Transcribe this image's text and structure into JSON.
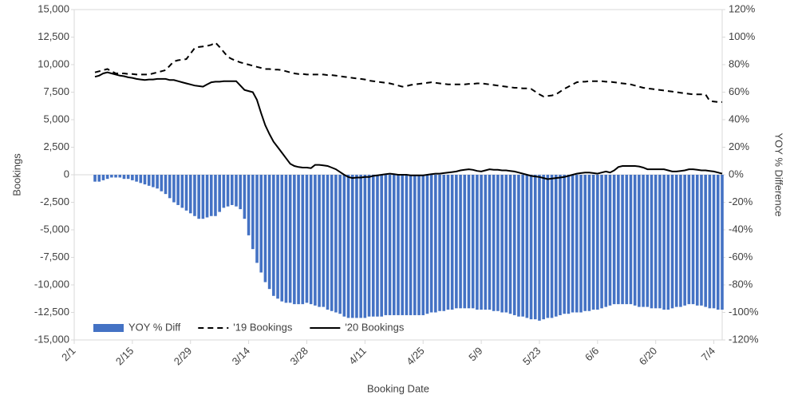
{
  "chart_data": {
    "type": "combo",
    "x_label": "Booking Date",
    "y_label": "Bookings",
    "y2_label": "YOY % Difference",
    "categories": [
      "2/1",
      null,
      null,
      null,
      null,
      null,
      null,
      null,
      null,
      null,
      null,
      null,
      null,
      null,
      "2/15",
      null,
      null,
      null,
      null,
      null,
      null,
      null,
      null,
      null,
      null,
      null,
      null,
      null,
      "2/29",
      null,
      null,
      null,
      null,
      null,
      null,
      null,
      null,
      null,
      null,
      null,
      null,
      null,
      "3/14",
      null,
      null,
      null,
      null,
      null,
      null,
      null,
      null,
      null,
      null,
      null,
      null,
      null,
      "3/28",
      null,
      null,
      null,
      null,
      null,
      null,
      null,
      null,
      null,
      null,
      null,
      null,
      null,
      "4/11",
      null,
      null,
      null,
      null,
      null,
      null,
      null,
      null,
      null,
      null,
      null,
      null,
      null,
      "4/25",
      null,
      null,
      null,
      null,
      null,
      null,
      null,
      null,
      null,
      null,
      null,
      null,
      null,
      "5/9",
      null,
      null,
      null,
      null,
      null,
      null,
      null,
      null,
      null,
      null,
      null,
      null,
      null,
      "5/23",
      null,
      null,
      null,
      null,
      null,
      null,
      null,
      null,
      null,
      null,
      null,
      null,
      null,
      "6/6",
      null,
      null,
      null,
      null,
      null,
      null,
      null,
      null,
      null,
      null,
      null,
      null,
      null,
      "6/20",
      null,
      null,
      null,
      null,
      null,
      null,
      null,
      null,
      null,
      null,
      null,
      null,
      null,
      "7/4",
      null,
      null
    ],
    "series": [
      {
        "name": "YOY % Diff",
        "type": "bar",
        "axis": "y2",
        "color": "#4472c4",
        "values": [
          null,
          null,
          null,
          null,
          null,
          -5,
          -5,
          -4,
          -3,
          -2,
          -2,
          -2,
          -3,
          -3,
          -4,
          -5,
          -6,
          -7,
          -8,
          -9,
          -10,
          -12,
          -14,
          -17,
          -20,
          -22,
          -24,
          -26,
          -28,
          -30,
          -32,
          -32,
          -31,
          -30,
          -30,
          -27,
          -24,
          -23,
          -22,
          -23,
          -25,
          -32,
          -44,
          -54,
          -64,
          -71,
          -78,
          -83,
          -88,
          -90,
          -92,
          -93,
          -93,
          -94,
          -94,
          -94,
          -93,
          -94,
          -95,
          -96,
          -96,
          -98,
          -99,
          -100,
          -101,
          -103,
          -104,
          -104,
          -104,
          -104,
          -104,
          -103,
          -103,
          -103,
          -103,
          -102,
          -102,
          -102,
          -102,
          -102,
          -102,
          -102,
          -102,
          -102,
          -102,
          -101,
          -100,
          -100,
          -99,
          -99,
          -98,
          -98,
          -97,
          -97,
          -97,
          -97,
          -97,
          -98,
          -98,
          -98,
          -98,
          -99,
          -99,
          -100,
          -100,
          -101,
          -102,
          -103,
          -103,
          -104,
          -105,
          -105,
          -106,
          -105,
          -104,
          -104,
          -103,
          -102,
          -101,
          -101,
          -100,
          -100,
          -100,
          -99,
          -99,
          -98,
          -98,
          -97,
          -96,
          -95,
          -94,
          -94,
          -94,
          -94,
          -94,
          -95,
          -96,
          -96,
          -96,
          -97,
          -97,
          -97,
          -98,
          -98,
          -97,
          -96,
          -96,
          -95,
          -94,
          -94,
          -95,
          -95,
          -96,
          -97,
          -97,
          -98,
          -98
        ]
      },
      {
        "name": "'19 Bookings",
        "type": "line",
        "line_style": "dashed",
        "color": "#000000",
        "values": [
          null,
          null,
          null,
          null,
          null,
          9300,
          9400,
          9500,
          9600,
          9400,
          9200,
          9200,
          9200,
          9150,
          9150,
          9100,
          9100,
          9100,
          9100,
          9200,
          9300,
          9400,
          9500,
          9900,
          10300,
          10400,
          10450,
          10500,
          11000,
          11500,
          11600,
          11650,
          11700,
          11800,
          12000,
          11600,
          11150,
          10700,
          10500,
          10350,
          10200,
          10100,
          10000,
          9900,
          9800,
          9700,
          9600,
          9600,
          9550,
          9550,
          9500,
          9400,
          9300,
          9200,
          9150,
          9150,
          9100,
          9100,
          9100,
          9100,
          9100,
          9050,
          9050,
          9000,
          8950,
          8900,
          8850,
          8800,
          8750,
          8700,
          8650,
          8550,
          8500,
          8450,
          8400,
          8350,
          8300,
          8200,
          8100,
          8000,
          8050,
          8150,
          8200,
          8250,
          8300,
          8350,
          8400,
          8350,
          8300,
          8250,
          8200,
          8200,
          8200,
          8200,
          8200,
          8250,
          8250,
          8300,
          8300,
          8250,
          8200,
          8150,
          8100,
          8050,
          8000,
          7950,
          7900,
          7900,
          7850,
          7850,
          7800,
          7550,
          7300,
          7100,
          7150,
          7200,
          7300,
          7550,
          7800,
          8000,
          8200,
          8400,
          8450,
          8450,
          8500,
          8500,
          8500,
          8500,
          8450,
          8450,
          8400,
          8350,
          8300,
          8250,
          8200,
          8100,
          8000,
          7900,
          7850,
          7800,
          7750,
          7700,
          7650,
          7600,
          7550,
          7500,
          7450,
          7400,
          7350,
          7300,
          7300,
          7300,
          7300,
          6700,
          6650,
          6600,
          6600
        ]
      },
      {
        "name": "'20 Bookings",
        "type": "line",
        "line_style": "solid",
        "color": "#000000",
        "values": [
          null,
          null,
          null,
          null,
          null,
          8900,
          9000,
          9200,
          9300,
          9200,
          9100,
          9000,
          8950,
          8850,
          8800,
          8700,
          8650,
          8600,
          8650,
          8650,
          8700,
          8700,
          8700,
          8600,
          8600,
          8500,
          8400,
          8300,
          8200,
          8100,
          8050,
          8000,
          8200,
          8400,
          8450,
          8450,
          8500,
          8500,
          8500,
          8500,
          8100,
          7700,
          7600,
          7500,
          6800,
          5600,
          4500,
          3700,
          3000,
          2500,
          2000,
          1500,
          1000,
          800,
          700,
          650,
          650,
          600,
          900,
          900,
          850,
          800,
          650,
          500,
          250,
          0,
          -200,
          -300,
          -250,
          -250,
          -200,
          -200,
          -100,
          -50,
          0,
          50,
          100,
          50,
          0,
          0,
          0,
          -50,
          -50,
          -50,
          -50,
          0,
          50,
          100,
          100,
          150,
          200,
          250,
          300,
          400,
          450,
          500,
          450,
          350,
          300,
          400,
          500,
          450,
          450,
          400,
          400,
          350,
          300,
          200,
          100,
          0,
          -100,
          -150,
          -200,
          -300,
          -400,
          -350,
          -300,
          -250,
          -200,
          -100,
          0,
          100,
          150,
          200,
          200,
          150,
          100,
          200,
          300,
          200,
          400,
          700,
          800,
          800,
          800,
          800,
          750,
          650,
          500,
          500,
          500,
          500,
          500,
          400,
          300,
          300,
          350,
          400,
          500,
          500,
          450,
          400,
          400,
          350,
          300,
          200,
          100
        ]
      }
    ],
    "ylim": [
      -15000,
      15000
    ],
    "yticks": [
      {
        "value": -15000,
        "label": "-15,000"
      },
      {
        "value": -12500,
        "label": "-12,500"
      },
      {
        "value": -10000,
        "label": "-10,000"
      },
      {
        "value": -7500,
        "label": "-7,500"
      },
      {
        "value": -5000,
        "label": "-5,000"
      },
      {
        "value": -2500,
        "label": "-2,500"
      },
      0,
      {
        "value": 2500,
        "label": "2,500"
      },
      {
        "value": 5000,
        "label": "5,000"
      },
      {
        "value": 7500,
        "label": "7,500"
      },
      {
        "value": 10000,
        "label": "10,000"
      },
      {
        "value": 12500,
        "label": "12,500"
      },
      {
        "value": 15000,
        "label": "15,000"
      }
    ],
    "y2lim": [
      -120,
      120
    ],
    "y2ticks": [
      {
        "value": -120,
        "label": "-120%"
      },
      {
        "value": -100,
        "label": "-100%"
      },
      {
        "value": -80,
        "label": "-80%"
      },
      {
        "value": -60,
        "label": "-60%"
      },
      {
        "value": -40,
        "label": "-40%"
      },
      {
        "value": -20,
        "label": "-20%"
      },
      {
        "value": 0,
        "label": "0%"
      },
      {
        "value": 20,
        "label": "20%"
      },
      {
        "value": 40,
        "label": "40%"
      },
      {
        "value": 60,
        "label": "60%"
      },
      {
        "value": 80,
        "label": "80%"
      },
      {
        "value": 100,
        "label": "100%"
      },
      {
        "value": 120,
        "label": "120%"
      }
    ],
    "legend": "bottom-left"
  }
}
